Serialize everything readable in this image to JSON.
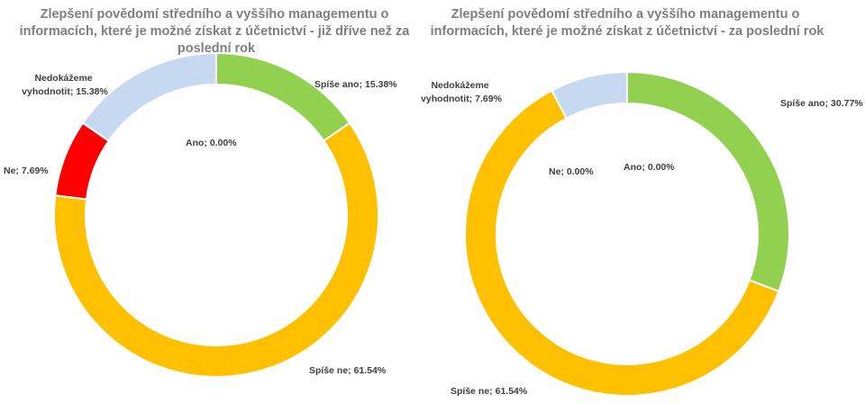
{
  "chart_data": [
    {
      "type": "donut",
      "title_lines": [
        "Zlepšení povědomí středního a vyššího managementu o",
        "informacích, které je možné získat z účetnictví - již dříve než za",
        "poslední rok"
      ],
      "slices": [
        {
          "label": "Spíše ano",
          "value": 15.38,
          "display": "Spíše ano; 15.38%",
          "color": "#92d050"
        },
        {
          "label": "Spíše ne",
          "value": 61.54,
          "display": "Spíše ne; 61.54%",
          "color": "#ffc000"
        },
        {
          "label": "Ne",
          "value": 7.69,
          "display": "Ne; 7.69%",
          "color": "#ff0000"
        },
        {
          "label": "Nedokážeme vyhodnotit",
          "value": 15.38,
          "display_lines": [
            "Nedokážeme",
            "vyhodnotit; 15.38%"
          ],
          "color": "#c6d9f1"
        },
        {
          "label": "Ano",
          "value": 0.0,
          "display": "Ano; 0.00%",
          "color": "#4f81bd"
        }
      ]
    },
    {
      "type": "donut",
      "title_lines": [
        "Zlepšení povědomí středního a vyššího managementu o",
        "informacích, které je možné získat z účetnictví - za poslední rok"
      ],
      "slices": [
        {
          "label": "Spíše ano",
          "value": 30.77,
          "display": "Spíše ano; 30.77%",
          "color": "#92d050"
        },
        {
          "label": "Spíše ne",
          "value": 61.54,
          "display": "Spíše ne; 61.54%",
          "color": "#ffc000"
        },
        {
          "label": "Ne",
          "value": 0.0,
          "display": "Ne; 0.00%",
          "color": "#ff0000"
        },
        {
          "label": "Nedokážeme vyhodnotit",
          "value": 7.69,
          "display_lines": [
            "Nedokážeme",
            "vyhodnotit; 7.69%"
          ],
          "color": "#c6d9f1"
        },
        {
          "label": "Ano",
          "value": 0.0,
          "display": "Ano; 0.00%",
          "color": "#4f81bd"
        }
      ]
    }
  ]
}
